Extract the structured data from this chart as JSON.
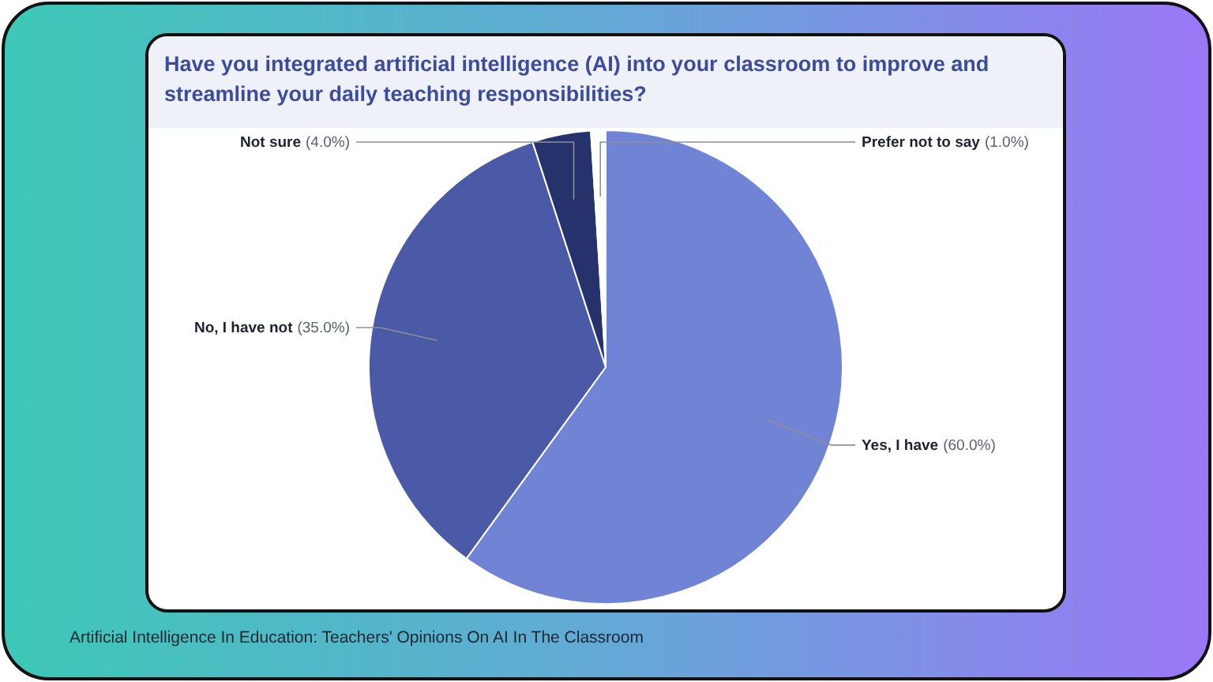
{
  "chart_data": {
    "type": "pie",
    "title": "Have you integrated artificial intelligence (AI) into your classroom to improve and streamline your daily teaching responsibilities?",
    "categories": [
      "Yes, I have",
      "No, I have not",
      "Not sure",
      "Prefer not to say"
    ],
    "values": [
      60,
      35,
      4,
      1
    ],
    "colors": [
      "#7083d5",
      "#4a5aa6",
      "#25326b",
      "#ffffff"
    ],
    "value_labels": [
      "(60.0%)",
      "(35.0%)",
      "(4.0%)",
      "(1.0%)"
    ],
    "annotations": [
      "Artificial Intelligence In Education: Teachers' Opinions On AI In The Classroom"
    ]
  }
}
